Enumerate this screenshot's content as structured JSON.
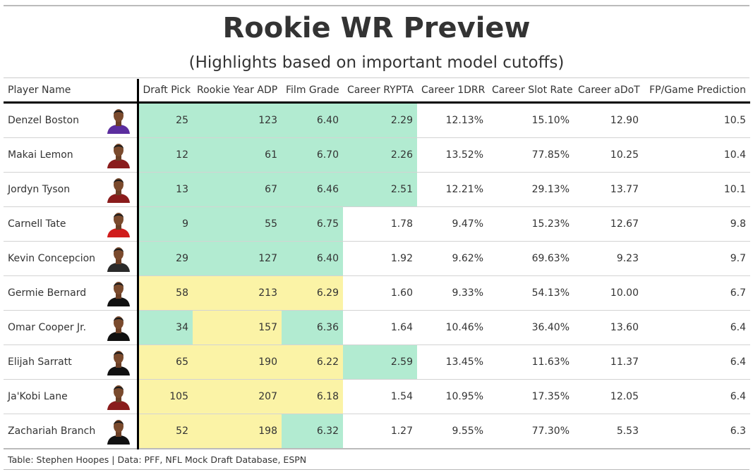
{
  "title": "Rookie WR Preview",
  "subtitle": "(Highlights based on important model cutoffs)",
  "footer": "Table: Stephen Hoopes | Data: PFF, NFL Mock Draft Database, ESPN",
  "colors": {
    "green": "#b2ebd1",
    "yellow": "#fbf3a6",
    "white": "#ffffff"
  },
  "columns": [
    "Player Name",
    "",
    "Draft Pick",
    "Rookie Year ADP",
    "Film Grade",
    "Career RYPTA",
    "Career 1DRR",
    "Career Slot Rate",
    "Career aDoT",
    "FP/Game Prediction"
  ],
  "chart_data": {
    "type": "table",
    "title": "Rookie WR Preview",
    "subtitle": "(Highlights based on important model cutoffs)",
    "rows": [
      {
        "player": "Denzel Boston",
        "headshot": "player-headshot-purple-uniform",
        "draft_pick": "25",
        "adp": "123",
        "film_grade": "6.40",
        "rypta": "2.29",
        "drr": "12.13%",
        "slot_rate": "15.10%",
        "adot": "12.90",
        "fp_game": "10.5",
        "highlight": {
          "draft_pick": "green",
          "adp": "green",
          "film_grade": "green",
          "rypta": "green"
        }
      },
      {
        "player": "Makai Lemon",
        "headshot": "player-headshot-maroon-uniform",
        "draft_pick": "12",
        "adp": "61",
        "film_grade": "6.70",
        "rypta": "2.26",
        "drr": "13.52%",
        "slot_rate": "77.85%",
        "adot": "10.25",
        "fp_game": "10.4",
        "highlight": {
          "draft_pick": "green",
          "adp": "green",
          "film_grade": "green",
          "rypta": "green"
        }
      },
      {
        "player": "Jordyn Tyson",
        "headshot": "player-headshot-maroon-uniform",
        "draft_pick": "13",
        "adp": "67",
        "film_grade": "6.46",
        "rypta": "2.51",
        "drr": "12.21%",
        "slot_rate": "29.13%",
        "adot": "13.77",
        "fp_game": "10.1",
        "highlight": {
          "draft_pick": "green",
          "adp": "green",
          "film_grade": "green",
          "rypta": "green"
        }
      },
      {
        "player": "Carnell Tate",
        "headshot": "player-headshot-red-uniform",
        "draft_pick": "9",
        "adp": "55",
        "film_grade": "6.75",
        "rypta": "1.78",
        "drr": "9.47%",
        "slot_rate": "15.23%",
        "adot": "12.67",
        "fp_game": "9.8",
        "highlight": {
          "draft_pick": "green",
          "adp": "green",
          "film_grade": "green",
          "rypta": "plain"
        }
      },
      {
        "player": "Kevin Concepcion",
        "headshot": "player-headshot-black-uniform",
        "draft_pick": "29",
        "adp": "127",
        "film_grade": "6.40",
        "rypta": "1.92",
        "drr": "9.62%",
        "slot_rate": "69.63%",
        "adot": "9.23",
        "fp_game": "9.7",
        "highlight": {
          "draft_pick": "green",
          "adp": "green",
          "film_grade": "green",
          "rypta": "plain"
        }
      },
      {
        "player": "Germie Bernard",
        "headshot": "player-headshot-black-suit",
        "draft_pick": "58",
        "adp": "213",
        "film_grade": "6.29",
        "rypta": "1.60",
        "drr": "9.33%",
        "slot_rate": "54.13%",
        "adot": "10.00",
        "fp_game": "6.7",
        "highlight": {
          "draft_pick": "yellow",
          "adp": "yellow",
          "film_grade": "yellow",
          "rypta": "plain"
        }
      },
      {
        "player": "Omar Cooper Jr.",
        "headshot": "player-headshot-black-suit",
        "draft_pick": "34",
        "adp": "157",
        "film_grade": "6.36",
        "rypta": "1.64",
        "drr": "10.46%",
        "slot_rate": "36.40%",
        "adot": "13.60",
        "fp_game": "6.4",
        "highlight": {
          "draft_pick": "green",
          "adp": "yellow",
          "film_grade": "green",
          "rypta": "plain"
        }
      },
      {
        "player": "Elijah Sarratt",
        "headshot": "player-headshot-black-suit",
        "draft_pick": "65",
        "adp": "190",
        "film_grade": "6.22",
        "rypta": "2.59",
        "drr": "13.45%",
        "slot_rate": "11.63%",
        "adot": "11.37",
        "fp_game": "6.4",
        "highlight": {
          "draft_pick": "yellow",
          "adp": "yellow",
          "film_grade": "yellow",
          "rypta": "green"
        }
      },
      {
        "player": "Ja'Kobi Lane",
        "headshot": "player-headshot-maroon-uniform",
        "draft_pick": "105",
        "adp": "207",
        "film_grade": "6.18",
        "rypta": "1.54",
        "drr": "10.95%",
        "slot_rate": "17.35%",
        "adot": "12.05",
        "fp_game": "6.4",
        "highlight": {
          "draft_pick": "yellow",
          "adp": "yellow",
          "film_grade": "yellow",
          "rypta": "plain"
        }
      },
      {
        "player": "Zachariah Branch",
        "headshot": "player-headshot-black-suit",
        "draft_pick": "52",
        "adp": "198",
        "film_grade": "6.32",
        "rypta": "1.27",
        "drr": "9.55%",
        "slot_rate": "77.30%",
        "adot": "5.53",
        "fp_game": "6.3",
        "highlight": {
          "draft_pick": "yellow",
          "adp": "yellow",
          "film_grade": "green",
          "rypta": "plain"
        }
      }
    ]
  }
}
